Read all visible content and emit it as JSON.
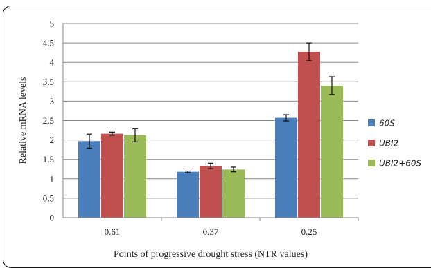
{
  "chart_data": {
    "type": "bar",
    "title": "",
    "xlabel": "Points of progressive drought stress (NTR values)",
    "ylabel": "Relative mRNA levels",
    "categories": [
      "0.61",
      "0.37",
      "0.25"
    ],
    "ylim": [
      0,
      5
    ],
    "yticks": [
      "0",
      "0.5",
      "1",
      "1.5",
      "2",
      "2.5",
      "3",
      "3.5",
      "4",
      "4.5",
      "5"
    ],
    "grid": true,
    "legend_position": "right",
    "series": [
      {
        "name": "60S",
        "color": "#4a7ebb",
        "values": [
          1.97,
          1.18,
          2.57
        ],
        "errors": [
          0.18,
          0.02,
          0.08
        ]
      },
      {
        "name": "UBI2",
        "color": "#c0504d",
        "values": [
          2.16,
          1.33,
          4.27
        ],
        "errors": [
          0.04,
          0.07,
          0.23
        ]
      },
      {
        "name": "UBI2+60S",
        "color": "#9bbb59",
        "values": [
          2.12,
          1.24,
          3.4
        ],
        "errors": [
          0.17,
          0.06,
          0.23
        ]
      }
    ]
  }
}
